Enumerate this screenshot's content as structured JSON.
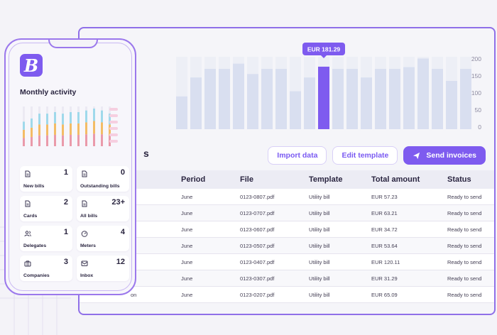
{
  "chart_data": {
    "type": "bar",
    "categories": [
      "",
      "",
      "",
      "",
      "",
      "",
      "",
      "",
      "",
      "",
      "",
      "",
      "",
      "",
      "",
      "",
      "",
      "",
      "",
      "",
      ""
    ],
    "values": [
      95,
      150,
      175,
      175,
      190,
      160,
      175,
      175,
      110,
      150,
      181.29,
      175,
      175,
      150,
      175,
      175,
      180,
      205,
      175,
      140,
      175
    ],
    "highlight_index": 10,
    "tooltip": "EUR 181.29",
    "yticks": [
      "200",
      "150",
      "100",
      "50",
      "0"
    ],
    "ylim": [
      0,
      210
    ],
    "color_bar": "#d9dff0",
    "color_track": "#edeff6",
    "color_highlight": "#7e5bef"
  },
  "section_title": "s",
  "actions": {
    "import": "Import data",
    "edit": "Edit template",
    "send": "Send invoices"
  },
  "table": {
    "headers": [
      "Period",
      "File",
      "Template",
      "Total amount",
      "Status"
    ],
    "rows": [
      {
        "first": "",
        "period": "June",
        "file": "0123-0807.pdf",
        "template": "Utility bill",
        "amount": "EUR 57.23",
        "status": "Ready to send"
      },
      {
        "first": "",
        "period": "June",
        "file": "0123-0707.pdf",
        "template": "Utility bill",
        "amount": "EUR 63.21",
        "status": "Ready to send"
      },
      {
        "first": "",
        "period": "June",
        "file": "0123-0607.pdf",
        "template": "Utility bill",
        "amount": "EUR 34.72",
        "status": "Ready to send"
      },
      {
        "first": "",
        "period": "June",
        "file": "0123-0507.pdf",
        "template": "Utility bill",
        "amount": "EUR 53.64",
        "status": "Ready to send"
      },
      {
        "first": "",
        "period": "June",
        "file": "0123-0407.pdf",
        "template": "Utility bill",
        "amount": "EUR 120.11",
        "status": "Ready to send"
      },
      {
        "first": "",
        "period": "June",
        "file": "0123-0307.pdf",
        "template": "Utility bill",
        "amount": "EUR 31.29",
        "status": "Ready to send"
      },
      {
        "first": "on",
        "period": "June",
        "file": "0123-0207.pdf",
        "template": "Utility bill",
        "amount": "EUR 65.09",
        "status": "Ready to send"
      }
    ]
  },
  "phone": {
    "logo": "B",
    "title": "Monthly activity",
    "mini_chart": {
      "columns": [
        0.62,
        0.7,
        0.82,
        0.82,
        0.86,
        0.82,
        0.86,
        0.86,
        0.9,
        0.95,
        0.9,
        0.82
      ],
      "colors": [
        "#e8899b",
        "#f2b24a",
        "#8fd3e8"
      ]
    },
    "tiles": [
      {
        "label": "New bills",
        "count": "1",
        "icon": "document-icon"
      },
      {
        "label": "Outstanding bills",
        "count": "0",
        "icon": "document-icon"
      },
      {
        "label": "Cards",
        "count": "2",
        "icon": "document-icon"
      },
      {
        "label": "All bills",
        "count": "23+",
        "icon": "document-icon"
      },
      {
        "label": "Delegates",
        "count": "1",
        "icon": "users-icon"
      },
      {
        "label": "Meters",
        "count": "4",
        "icon": "gauge-icon"
      },
      {
        "label": "Companies",
        "count": "3",
        "icon": "briefcase-icon"
      },
      {
        "label": "Inbox",
        "count": "12",
        "icon": "inbox-icon"
      }
    ]
  }
}
